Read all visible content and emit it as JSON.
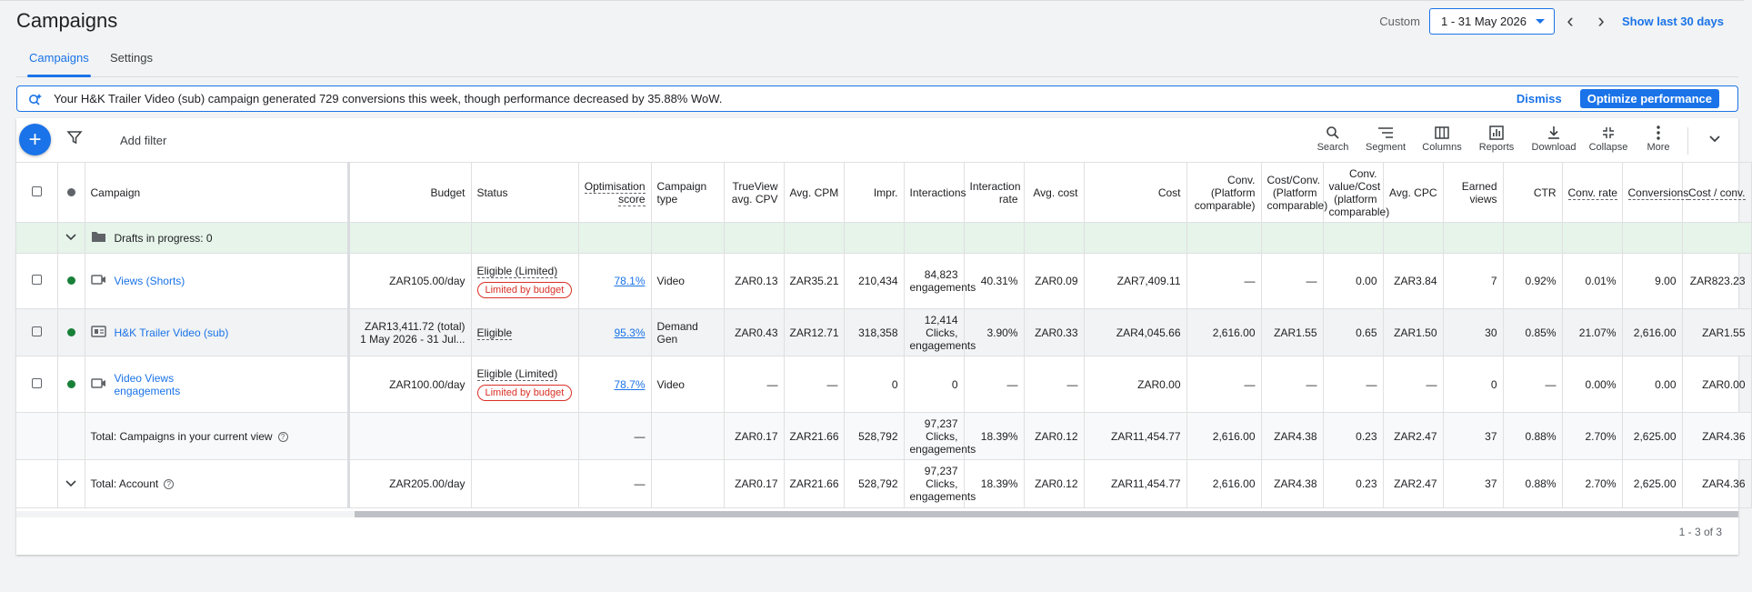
{
  "header": {
    "title": "Campaigns",
    "custom_label": "Custom",
    "date_range": "1 - 31 May 2026",
    "show_last": "Show last 30 days"
  },
  "tabs": [
    {
      "label": "Campaigns",
      "active": true
    },
    {
      "label": "Settings",
      "active": false
    }
  ],
  "banner": {
    "text": "Your H&K Trailer Video (sub) campaign generated 729 conversions this week, though performance decreased by 35.88% WoW.",
    "dismiss": "Dismiss",
    "optimize": "Optimize performance"
  },
  "toolbar": {
    "add_filter": "Add filter",
    "tools": [
      "Search",
      "Segment",
      "Columns",
      "Reports",
      "Download",
      "Collapse",
      "More"
    ]
  },
  "columns": {
    "campaign": "Campaign",
    "budget": "Budget",
    "status": "Status",
    "opt_score": "Optimisation score",
    "camp_type": "Campaign type",
    "trueview": "TrueView avg. CPV",
    "avg_cpm": "Avg. CPM",
    "impr": "Impr.",
    "interactions": "Interactions",
    "interaction_rate": "Interaction rate",
    "avg_cost": "Avg. cost",
    "cost": "Cost",
    "conv": "Conv. (Platform comparable)",
    "cost_conv_pc": "Cost/Conv. (Platform comparable)",
    "value_conv": "Conv. value/Cost (platform comparable)",
    "avg_cpc": "Avg. CPC",
    "earned_views": "Earned views",
    "ctr": "CTR",
    "conv_rate": "Conv. rate",
    "conversions": "Conversions",
    "cost_per_conv": "Cost / conv."
  },
  "draft": {
    "label": "Drafts in progress: 0"
  },
  "rows": [
    {
      "name": "Views (Shorts)",
      "budget": "ZAR105.00/day",
      "status": "Eligible (Limited)",
      "badge": "Limited by budget",
      "opt": "78.1%",
      "type": "Video",
      "cpv": "ZAR0.13",
      "cpm": "ZAR35.21",
      "impr": "210,434",
      "inter1": "84,823",
      "inter2": "engagements",
      "rate": "40.31%",
      "avgcost": "ZAR0.09",
      "cost": "ZAR7,409.11",
      "conv": "—",
      "costconv": "—",
      "valconv": "0.00",
      "cpc": "ZAR3.84",
      "earned": "7",
      "ctr": "0.92%",
      "convrate": "0.01%",
      "conversions": "9.00",
      "cpconv": "ZAR823.23"
    },
    {
      "name": "H&K Trailer Video (sub)",
      "budget1": "ZAR13,411.72 (total)",
      "budget2": "1 May 2026 - 31 Jul...",
      "status": "Eligible",
      "opt": "95.3%",
      "type": "Demand Gen",
      "cpv": "ZAR0.43",
      "cpm": "ZAR12.71",
      "impr": "318,358",
      "inter1": "12,414",
      "inter2": "Clicks,",
      "inter3": "engagements",
      "rate": "3.90%",
      "avgcost": "ZAR0.33",
      "cost": "ZAR4,045.66",
      "conv": "2,616.00",
      "costconv": "ZAR1.55",
      "valconv": "0.65",
      "cpc": "ZAR1.50",
      "earned": "30",
      "ctr": "0.85%",
      "convrate": "21.07%",
      "conversions": "2,616.00",
      "cpconv": "ZAR1.55"
    },
    {
      "name": "Video Views engagements",
      "budget": "ZAR100.00/day",
      "status": "Eligible (Limited)",
      "badge": "Limited by budget",
      "opt": "78.7%",
      "type": "Video",
      "cpv": "—",
      "cpm": "—",
      "impr": "0",
      "inter1": "0",
      "rate": "—",
      "avgcost": "—",
      "cost": "ZAR0.00",
      "conv": "—",
      "costconv": "—",
      "valconv": "—",
      "cpc": "—",
      "earned": "0",
      "ctr": "—",
      "convrate": "0.00%",
      "conversions": "0.00",
      "cpconv": "ZAR0.00"
    }
  ],
  "totals": [
    {
      "label": "Total: Campaigns in your current view",
      "budget": "",
      "opt": "—",
      "cpv": "ZAR0.17",
      "cpm": "ZAR21.66",
      "impr": "528,792",
      "inter1": "97,237",
      "inter2": "Clicks,",
      "inter3": "engagements",
      "rate": "18.39%",
      "avgcost": "ZAR0.12",
      "cost": "ZAR11,454.77",
      "conv": "2,616.00",
      "costconv": "ZAR4.38",
      "valconv": "0.23",
      "cpc": "ZAR2.47",
      "earned": "37",
      "ctr": "0.88%",
      "convrate": "2.70%",
      "conversions": "2,625.00",
      "cpconv": "ZAR4.36"
    },
    {
      "label": "Total: Account",
      "budget": "ZAR205.00/day",
      "opt": "—",
      "cpv": "ZAR0.17",
      "cpm": "ZAR21.66",
      "impr": "528,792",
      "inter1": "97,237",
      "inter2": "Clicks,",
      "inter3": "engagements",
      "rate": "18.39%",
      "avgcost": "ZAR0.12",
      "cost": "ZAR11,454.77",
      "conv": "2,616.00",
      "costconv": "ZAR4.38",
      "valconv": "0.23",
      "cpc": "ZAR2.47",
      "earned": "37",
      "ctr": "0.88%",
      "convrate": "2.70%",
      "conversions": "2,625.00",
      "cpconv": "ZAR4.36"
    }
  ],
  "pager": "1 - 3 of 3",
  "colors": {
    "accent": "#1a73e8",
    "enabled": "#188038",
    "warning": "#d93025",
    "draft_bg": "#e6f4ea"
  }
}
